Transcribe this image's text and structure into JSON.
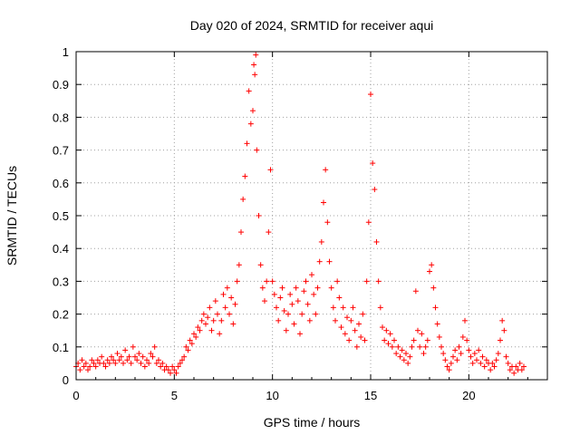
{
  "chart_data": {
    "type": "scatter",
    "title": "Day 020 of 2024, SRMTID for receiver aqui",
    "xlabel": "GPS time / hours",
    "ylabel": "SRMTID / TECUs",
    "xlim": [
      0,
      24
    ],
    "ylim": [
      0,
      1
    ],
    "xticks": [
      0,
      5,
      10,
      15,
      20
    ],
    "yticks": [
      0,
      0.1,
      0.2,
      0.3,
      0.4,
      0.5,
      0.6,
      0.7,
      0.8,
      0.9,
      1
    ],
    "grid": true,
    "marker": "+",
    "color": "#ff0000",
    "series": [
      {
        "name": "SRMTID",
        "points": [
          [
            0.0,
            0.04
          ],
          [
            0.1,
            0.05
          ],
          [
            0.2,
            0.03
          ],
          [
            0.3,
            0.06
          ],
          [
            0.4,
            0.04
          ],
          [
            0.5,
            0.05
          ],
          [
            0.6,
            0.03
          ],
          [
            0.7,
            0.04
          ],
          [
            0.8,
            0.06
          ],
          [
            0.9,
            0.05
          ],
          [
            1.0,
            0.04
          ],
          [
            1.1,
            0.06
          ],
          [
            1.2,
            0.05
          ],
          [
            1.3,
            0.07
          ],
          [
            1.4,
            0.05
          ],
          [
            1.5,
            0.04
          ],
          [
            1.6,
            0.06
          ],
          [
            1.7,
            0.05
          ],
          [
            1.8,
            0.07
          ],
          [
            1.9,
            0.06
          ],
          [
            2.0,
            0.05
          ],
          [
            2.1,
            0.08
          ],
          [
            2.2,
            0.06
          ],
          [
            2.3,
            0.07
          ],
          [
            2.4,
            0.05
          ],
          [
            2.5,
            0.09
          ],
          [
            2.6,
            0.06
          ],
          [
            2.7,
            0.07
          ],
          [
            2.8,
            0.05
          ],
          [
            2.9,
            0.1
          ],
          [
            3.0,
            0.07
          ],
          [
            3.1,
            0.06
          ],
          [
            3.2,
            0.08
          ],
          [
            3.3,
            0.05
          ],
          [
            3.4,
            0.07
          ],
          [
            3.5,
            0.04
          ],
          [
            3.6,
            0.06
          ],
          [
            3.7,
            0.05
          ],
          [
            3.8,
            0.08
          ],
          [
            3.9,
            0.07
          ],
          [
            4.0,
            0.1
          ],
          [
            4.1,
            0.05
          ],
          [
            4.2,
            0.06
          ],
          [
            4.3,
            0.04
          ],
          [
            4.4,
            0.05
          ],
          [
            4.5,
            0.03
          ],
          [
            4.6,
            0.04
          ],
          [
            4.7,
            0.03
          ],
          [
            4.8,
            0.02
          ],
          [
            4.9,
            0.04
          ],
          [
            5.0,
            0.03
          ],
          [
            5.1,
            0.02
          ],
          [
            5.2,
            0.04
          ],
          [
            5.3,
            0.05
          ],
          [
            5.4,
            0.06
          ],
          [
            5.5,
            0.07
          ],
          [
            5.6,
            0.1
          ],
          [
            5.7,
            0.09
          ],
          [
            5.8,
            0.12
          ],
          [
            5.9,
            0.11
          ],
          [
            6.0,
            0.14
          ],
          [
            6.1,
            0.13
          ],
          [
            6.2,
            0.16
          ],
          [
            6.3,
            0.15
          ],
          [
            6.4,
            0.18
          ],
          [
            6.5,
            0.2
          ],
          [
            6.6,
            0.17
          ],
          [
            6.7,
            0.19
          ],
          [
            6.8,
            0.22
          ],
          [
            6.9,
            0.15
          ],
          [
            7.0,
            0.18
          ],
          [
            7.1,
            0.24
          ],
          [
            7.2,
            0.2
          ],
          [
            7.3,
            0.14
          ],
          [
            7.4,
            0.18
          ],
          [
            7.5,
            0.26
          ],
          [
            7.6,
            0.22
          ],
          [
            7.7,
            0.28
          ],
          [
            7.8,
            0.2
          ],
          [
            7.9,
            0.25
          ],
          [
            8.0,
            0.17
          ],
          [
            8.1,
            0.23
          ],
          [
            8.2,
            0.3
          ],
          [
            8.3,
            0.35
          ],
          [
            8.4,
            0.45
          ],
          [
            8.5,
            0.55
          ],
          [
            8.6,
            0.62
          ],
          [
            8.7,
            0.72
          ],
          [
            8.8,
            0.88
          ],
          [
            8.9,
            0.78
          ],
          [
            9.0,
            0.82
          ],
          [
            9.05,
            0.96
          ],
          [
            9.1,
            0.93
          ],
          [
            9.15,
            0.99
          ],
          [
            9.2,
            0.7
          ],
          [
            9.3,
            0.5
          ],
          [
            9.4,
            0.35
          ],
          [
            9.5,
            0.28
          ],
          [
            9.6,
            0.24
          ],
          [
            9.7,
            0.3
          ],
          [
            9.8,
            0.45
          ],
          [
            9.9,
            0.64
          ],
          [
            10.0,
            0.3
          ],
          [
            10.1,
            0.26
          ],
          [
            10.2,
            0.22
          ],
          [
            10.3,
            0.18
          ],
          [
            10.4,
            0.25
          ],
          [
            10.5,
            0.28
          ],
          [
            10.6,
            0.21
          ],
          [
            10.7,
            0.15
          ],
          [
            10.8,
            0.2
          ],
          [
            10.9,
            0.26
          ],
          [
            11.0,
            0.23
          ],
          [
            11.1,
            0.17
          ],
          [
            11.2,
            0.28
          ],
          [
            11.3,
            0.24
          ],
          [
            11.4,
            0.14
          ],
          [
            11.5,
            0.2
          ],
          [
            11.6,
            0.27
          ],
          [
            11.7,
            0.3
          ],
          [
            11.8,
            0.23
          ],
          [
            11.9,
            0.18
          ],
          [
            12.0,
            0.32
          ],
          [
            12.1,
            0.26
          ],
          [
            12.2,
            0.2
          ],
          [
            12.3,
            0.28
          ],
          [
            12.4,
            0.36
          ],
          [
            12.5,
            0.42
          ],
          [
            12.6,
            0.54
          ],
          [
            12.7,
            0.64
          ],
          [
            12.8,
            0.48
          ],
          [
            12.9,
            0.36
          ],
          [
            13.0,
            0.28
          ],
          [
            13.1,
            0.22
          ],
          [
            13.2,
            0.18
          ],
          [
            13.3,
            0.3
          ],
          [
            13.4,
            0.25
          ],
          [
            13.5,
            0.16
          ],
          [
            13.6,
            0.22
          ],
          [
            13.7,
            0.14
          ],
          [
            13.8,
            0.19
          ],
          [
            13.9,
            0.12
          ],
          [
            14.0,
            0.18
          ],
          [
            14.1,
            0.22
          ],
          [
            14.2,
            0.15
          ],
          [
            14.3,
            0.1
          ],
          [
            14.4,
            0.17
          ],
          [
            14.5,
            0.13
          ],
          [
            14.6,
            0.2
          ],
          [
            14.7,
            0.12
          ],
          [
            14.8,
            0.3
          ],
          [
            14.9,
            0.48
          ],
          [
            15.0,
            0.87
          ],
          [
            15.1,
            0.66
          ],
          [
            15.2,
            0.58
          ],
          [
            15.3,
            0.42
          ],
          [
            15.4,
            0.3
          ],
          [
            15.5,
            0.22
          ],
          [
            15.6,
            0.16
          ],
          [
            15.7,
            0.12
          ],
          [
            15.8,
            0.15
          ],
          [
            15.9,
            0.11
          ],
          [
            16.0,
            0.14
          ],
          [
            16.1,
            0.1
          ],
          [
            16.2,
            0.12
          ],
          [
            16.3,
            0.08
          ],
          [
            16.4,
            0.1
          ],
          [
            16.5,
            0.07
          ],
          [
            16.6,
            0.09
          ],
          [
            16.7,
            0.06
          ],
          [
            16.8,
            0.08
          ],
          [
            16.9,
            0.05
          ],
          [
            17.0,
            0.07
          ],
          [
            17.1,
            0.1
          ],
          [
            17.2,
            0.12
          ],
          [
            17.3,
            0.27
          ],
          [
            17.4,
            0.15
          ],
          [
            17.5,
            0.1
          ],
          [
            17.6,
            0.14
          ],
          [
            17.7,
            0.08
          ],
          [
            17.8,
            0.1
          ],
          [
            17.9,
            0.12
          ],
          [
            18.0,
            0.33
          ],
          [
            18.1,
            0.35
          ],
          [
            18.2,
            0.28
          ],
          [
            18.3,
            0.22
          ],
          [
            18.4,
            0.17
          ],
          [
            18.5,
            0.13
          ],
          [
            18.6,
            0.1
          ],
          [
            18.7,
            0.08
          ],
          [
            18.8,
            0.06
          ],
          [
            18.9,
            0.04
          ],
          [
            19.0,
            0.03
          ],
          [
            19.1,
            0.05
          ],
          [
            19.2,
            0.07
          ],
          [
            19.3,
            0.09
          ],
          [
            19.4,
            0.06
          ],
          [
            19.5,
            0.1
          ],
          [
            19.6,
            0.08
          ],
          [
            19.7,
            0.13
          ],
          [
            19.8,
            0.18
          ],
          [
            19.9,
            0.12
          ],
          [
            20.0,
            0.09
          ],
          [
            20.1,
            0.07
          ],
          [
            20.2,
            0.05
          ],
          [
            20.3,
            0.08
          ],
          [
            20.4,
            0.06
          ],
          [
            20.5,
            0.09
          ],
          [
            20.6,
            0.05
          ],
          [
            20.7,
            0.07
          ],
          [
            20.8,
            0.04
          ],
          [
            20.9,
            0.06
          ],
          [
            21.0,
            0.05
          ],
          [
            21.1,
            0.03
          ],
          [
            21.2,
            0.05
          ],
          [
            21.3,
            0.04
          ],
          [
            21.4,
            0.06
          ],
          [
            21.5,
            0.08
          ],
          [
            21.6,
            0.12
          ],
          [
            21.7,
            0.18
          ],
          [
            21.8,
            0.15
          ],
          [
            21.9,
            0.07
          ],
          [
            22.0,
            0.05
          ],
          [
            22.1,
            0.03
          ],
          [
            22.2,
            0.04
          ],
          [
            22.3,
            0.02
          ],
          [
            22.4,
            0.04
          ],
          [
            22.5,
            0.03
          ],
          [
            22.6,
            0.05
          ],
          [
            22.7,
            0.03
          ],
          [
            22.8,
            0.04
          ]
        ]
      }
    ]
  }
}
